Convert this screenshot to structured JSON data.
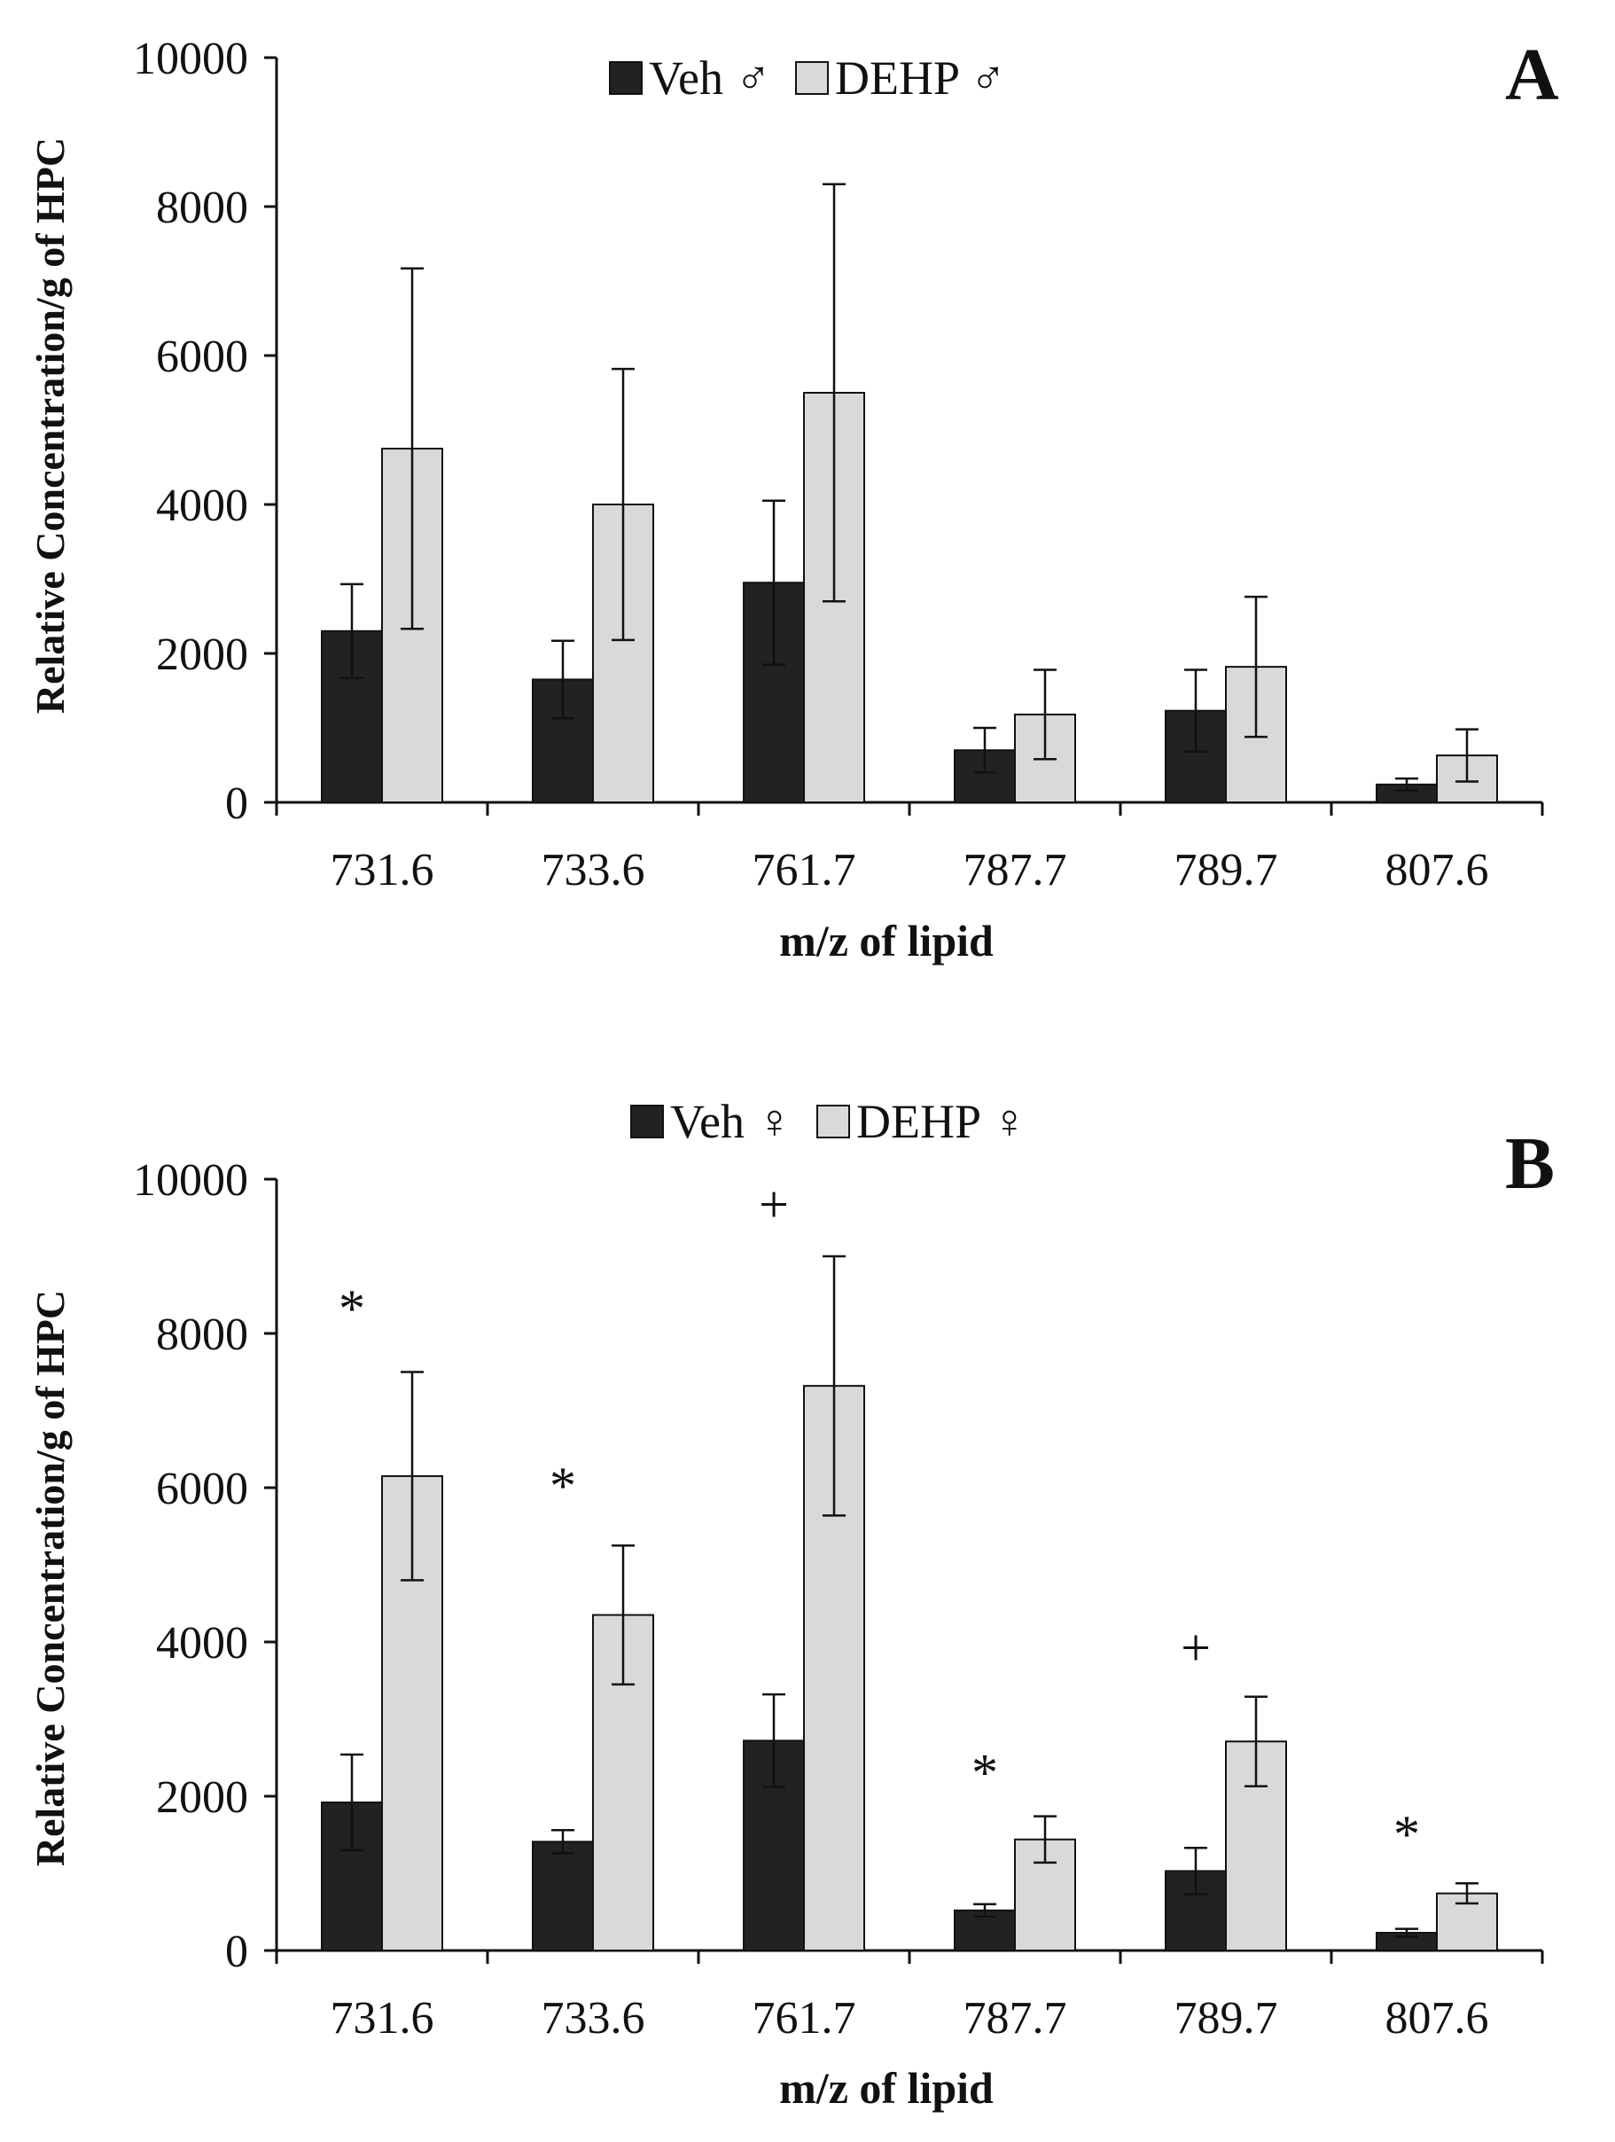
{
  "chart_data": [
    {
      "type": "bar",
      "panel": "A",
      "categories": [
        "731.6",
        "733.6",
        "761.7",
        "787.7",
        "789.7",
        "807.6"
      ],
      "series": [
        {
          "name": "Veh",
          "symbol": "♂",
          "values": [
            2300,
            1650,
            2950,
            700,
            1230,
            240
          ],
          "errors": [
            630,
            520,
            1100,
            300,
            550,
            80
          ]
        },
        {
          "name": "DEHP",
          "symbol": "♂",
          "values": [
            4750,
            4000,
            5500,
            1180,
            1820,
            630
          ],
          "errors": [
            2420,
            1820,
            2800,
            600,
            940,
            350
          ]
        }
      ],
      "yticks": [
        "0",
        "2000",
        "4000",
        "6000",
        "8000",
        "10000"
      ],
      "ylim": [
        0,
        10000
      ],
      "ylabel": "Relative Concentration/g of HPC",
      "xlabel": "m/z of lipid",
      "annotations": [],
      "colors": {
        "veh": "#222222",
        "dehp": "#d9d9d9"
      }
    },
    {
      "type": "bar",
      "panel": "B",
      "categories": [
        "731.6",
        "733.6",
        "761.7",
        "787.7",
        "789.7",
        "807.6"
      ],
      "series": [
        {
          "name": "Veh",
          "symbol": "♀",
          "values": [
            1920,
            1410,
            2720,
            520,
            1030,
            230
          ],
          "errors": [
            620,
            150,
            600,
            80,
            300,
            50
          ]
        },
        {
          "name": "DEHP",
          "symbol": "♀",
          "values": [
            6150,
            4350,
            7320,
            1440,
            2710,
            740
          ],
          "errors": [
            1350,
            900,
            1680,
            300,
            580,
            130
          ]
        }
      ],
      "yticks": [
        "0",
        "2000",
        "4000",
        "6000",
        "8000",
        "10000"
      ],
      "ylim": [
        0,
        10000
      ],
      "ylabel": "Relative Concentration/g of HPC",
      "xlabel": "m/z of lipid",
      "annotations": [
        {
          "category": "731.6",
          "text": "*",
          "value": 8300
        },
        {
          "category": "733.6",
          "text": "*",
          "value": 6000
        },
        {
          "category": "761.7",
          "text": "+",
          "value": 9650
        },
        {
          "category": "787.7",
          "text": "*",
          "value": 2280
        },
        {
          "category": "789.7",
          "text": "+",
          "value": 3900
        },
        {
          "category": "807.6",
          "text": "*",
          "value": 1480
        }
      ],
      "colors": {
        "veh": "#222222",
        "dehp": "#d9d9d9"
      }
    }
  ]
}
